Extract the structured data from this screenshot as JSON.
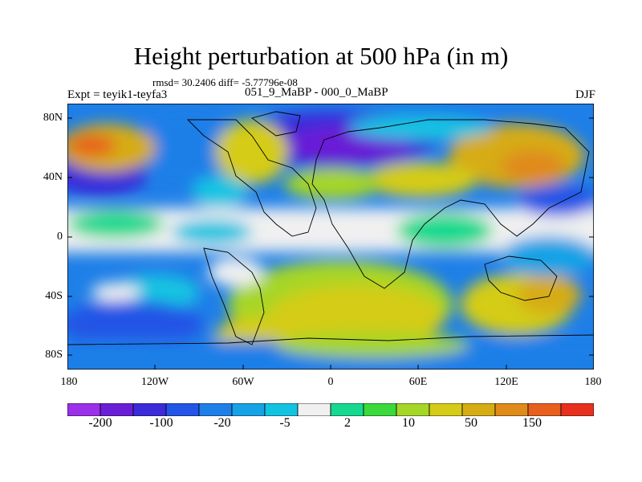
{
  "title": "Height perturbation at 500 hPa (in m)",
  "stats_line": "rmsd= 30.2406 diff= -5.77796e-08",
  "left_label": "Expt = teyik1-teyfa3",
  "center_label": "051_9_MaBP - 000_0_MaBP",
  "right_label": "DJF",
  "map": {
    "projection": "cylindrical equidistant",
    "lon_range": [
      -180,
      180
    ],
    "lat_range": [
      -90,
      90
    ],
    "field": "500 hPa height perturbation",
    "units": "m",
    "y_ticks": [
      "80N",
      "40N",
      "0",
      "40S",
      "80S"
    ],
    "x_ticks": [
      "180",
      "120W",
      "60W",
      "0",
      "60E",
      "120E",
      "180"
    ],
    "continent_outlines": true
  },
  "colorbar": {
    "colors": [
      "#9b30e8",
      "#6a1fd6",
      "#3b2bd9",
      "#2355e6",
      "#1e7fe8",
      "#16a2e6",
      "#13c4e2",
      "#f0f0f0",
      "#15d98f",
      "#3bd93b",
      "#a6d628",
      "#d4cc18",
      "#d6ac14",
      "#e08a1a",
      "#e7601e",
      "#e8301e"
    ],
    "labels": [
      "-200",
      "-100",
      "-20",
      "-5",
      "2",
      "10",
      "50",
      "150"
    ]
  }
}
